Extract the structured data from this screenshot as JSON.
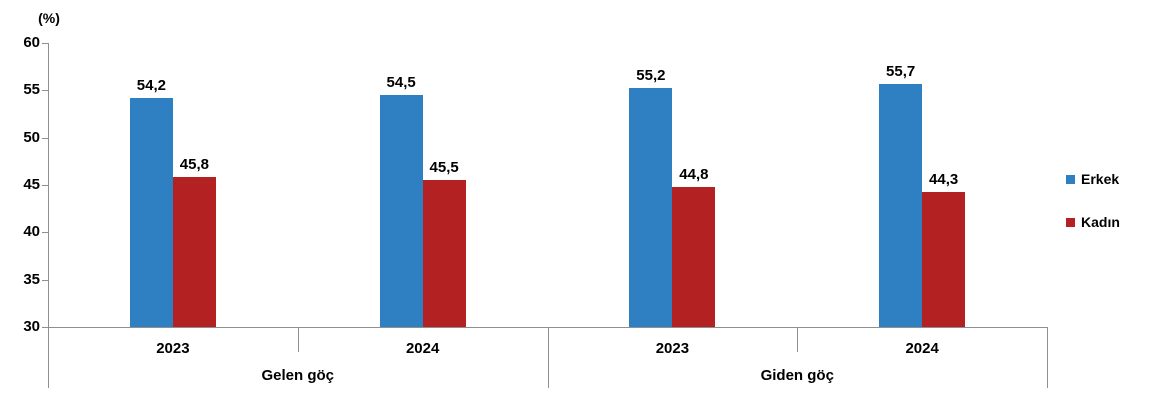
{
  "chart_data": {
    "type": "bar",
    "title": "",
    "ylabel": "(%)",
    "xlabel": "",
    "ylim": [
      30,
      60
    ],
    "yticks": [
      30,
      35,
      40,
      45,
      50,
      55,
      60
    ],
    "grid": false,
    "legend_position": "right",
    "groups": [
      {
        "label": "Gelen göç",
        "years": [
          "2023",
          "2024"
        ]
      },
      {
        "label": "Giden göç",
        "years": [
          "2023",
          "2024"
        ]
      }
    ],
    "categories": [
      "Gelen göç 2023",
      "Gelen göç 2024",
      "Giden göç 2023",
      "Giden göç 2024"
    ],
    "year_labels": [
      "2023",
      "2024",
      "2023",
      "2024"
    ],
    "series": [
      {
        "name": "Erkek",
        "color": "#2E80C3",
        "values": [
          54.2,
          54.5,
          55.2,
          55.7
        ],
        "labels": [
          "54,2",
          "54,5",
          "55,2",
          "55,7"
        ]
      },
      {
        "name": "Kadın",
        "color": "#B42122",
        "values": [
          45.8,
          45.5,
          44.8,
          44.3
        ],
        "labels": [
          "45,8",
          "45,5",
          "44,8",
          "44,3"
        ]
      }
    ]
  },
  "legend": {
    "items": [
      {
        "label": "Erkek",
        "color": "#2E80C3"
      },
      {
        "label": "Kadın",
        "color": "#B42122"
      }
    ]
  },
  "colors": {
    "axis": "#8F8F8F",
    "text": "#000000",
    "background": "#FFFFFF"
  }
}
